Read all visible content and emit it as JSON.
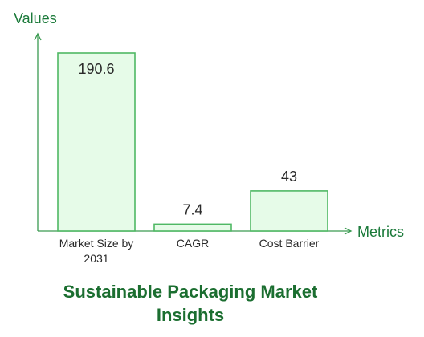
{
  "chart_data": {
    "type": "bar",
    "title": "Sustainable Packaging Market Insights",
    "title_lines": [
      "Sustainable Packaging Market",
      "Insights"
    ],
    "xlabel": "Metrics",
    "ylabel": "Values",
    "categories": [
      "Market Size by 2031",
      "CAGR",
      "Cost Barrier"
    ],
    "category_lines": [
      [
        "Market Size by",
        "2031"
      ],
      [
        "CAGR"
      ],
      [
        "Cost Barrier"
      ]
    ],
    "values": [
      190.6,
      7.4,
      43
    ],
    "value_labels": [
      "190.6",
      "7.4",
      "43"
    ],
    "ylim": [
      0,
      190.6
    ],
    "grid": false,
    "legend": "none",
    "colors": {
      "bar_fill": "#e6fbe8",
      "bar_stroke": "#4fb864",
      "axis": "#3a9a50",
      "label_text": "#1b7a3a",
      "value_text": "#2a2a2a",
      "title_text": "#1b6e30"
    }
  }
}
